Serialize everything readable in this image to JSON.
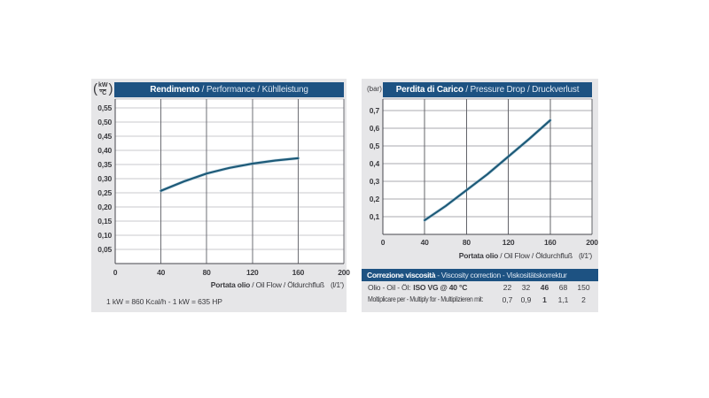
{
  "colors": {
    "page_bg": "#ffffff",
    "panel_bg": "#e6e6e8",
    "header_bg": "#1d5282",
    "header_text": "#ffffff",
    "header_text_secondary": "#dce6f1",
    "text": "#3a3a3e",
    "plot_bg": "#ffffff",
    "axis": "#45464c",
    "curve": "#1d5a78",
    "curve_halo": "#9cc2d4"
  },
  "left_panel": {
    "y_unit": {
      "open": "(",
      "numerator": "kW",
      "denominator": "°C",
      "close": ")"
    },
    "header": {
      "primary": "Rendimento",
      "secondary": " / Performance / Kühlleistung"
    },
    "xlabel": {
      "bold": "Portata olio",
      "rest": " / Oil Flow / Öldurchfluß",
      "unit": "(l/1')"
    },
    "footnote": "1 kW = 860 Kcal/h - 1 kW = 635 HP"
  },
  "right_panel": {
    "y_unit": "(bar)",
    "header": {
      "primary": "Perdita di Carico",
      "secondary": " / Pressure Drop / Druckverlust"
    },
    "xlabel": {
      "bold": "Portata olio",
      "rest": " / Oil Flow / Öldurchfluß",
      "unit": "(l/1')"
    },
    "viscosity": {
      "header": {
        "primary": "Correzione viscosità",
        "secondary": " - Viscosity correction - Viskositätskorrektur"
      },
      "row1": {
        "label": "Olio - Oil - Öl:",
        "label_bold": "ISO VG @ 40 °C",
        "values": [
          "22",
          "32",
          "46",
          "68",
          "150"
        ],
        "bold_index": 2
      },
      "row2": {
        "label": "Moltiplicare per - Multiply for - Multiplizieren mit:",
        "values": [
          "0,7",
          "0,9",
          "1",
          "1,1",
          "2"
        ],
        "bold_index": 2
      }
    }
  },
  "chart_data": [
    {
      "id": "performance",
      "type": "line",
      "title": "Rendimento / Performance / Kühlleistung",
      "xlabel": "Portata olio / Oil Flow / Öldurchfluß (l/1')",
      "ylabel": "kW/°C",
      "x": [
        40,
        60,
        80,
        100,
        120,
        140,
        160
      ],
      "y": [
        0.257,
        0.29,
        0.318,
        0.338,
        0.353,
        0.364,
        0.372
      ],
      "xlim": [
        0,
        200
      ],
      "ylim": [
        0,
        0.581
      ],
      "x_ticks": [
        {
          "v": 0,
          "label": "0"
        },
        {
          "v": 40,
          "label": "40"
        },
        {
          "v": 80,
          "label": "80"
        },
        {
          "v": 120,
          "label": "120"
        },
        {
          "v": 160,
          "label": "160"
        },
        {
          "v": 200,
          "label": "200"
        }
      ],
      "y_ticks": [
        {
          "v": 0.05,
          "label": "0,05"
        },
        {
          "v": 0.1,
          "label": "0,10"
        },
        {
          "v": 0.15,
          "label": "0,15"
        },
        {
          "v": 0.2,
          "label": "0,20"
        },
        {
          "v": 0.25,
          "label": "0,25"
        },
        {
          "v": 0.3,
          "label": "0,30"
        },
        {
          "v": 0.35,
          "label": "0,35"
        },
        {
          "v": 0.4,
          "label": "0,40"
        },
        {
          "v": 0.45,
          "label": "0,45"
        },
        {
          "v": 0.5,
          "label": "0,50"
        },
        {
          "v": 0.55,
          "label": "0,55"
        }
      ],
      "y_grid_step": 0.05,
      "grid": true,
      "legend": false,
      "grid_color_h": "#c8c8cd",
      "grid_color_v": "#6e6f75"
    },
    {
      "id": "pressure_drop",
      "type": "line",
      "title": "Perdita di Carico / Pressure Drop / Druckverlust",
      "xlabel": "Portata olio / Oil Flow / Öldurchfluß (l/1')",
      "ylabel": "bar",
      "x": [
        40,
        60,
        80,
        100,
        120,
        140,
        160
      ],
      "y": [
        0.08,
        0.16,
        0.25,
        0.34,
        0.44,
        0.54,
        0.645
      ],
      "xlim": [
        0,
        200
      ],
      "ylim": [
        0,
        0.765
      ],
      "x_ticks": [
        {
          "v": 0,
          "label": "0"
        },
        {
          "v": 40,
          "label": "40"
        },
        {
          "v": 80,
          "label": "80"
        },
        {
          "v": 120,
          "label": "120"
        },
        {
          "v": 160,
          "label": "160"
        },
        {
          "v": 200,
          "label": "200"
        }
      ],
      "y_ticks": [
        {
          "v": 0.1,
          "label": "0,1"
        },
        {
          "v": 0.2,
          "label": "0,2"
        },
        {
          "v": 0.3,
          "label": "0,3"
        },
        {
          "v": 0.4,
          "label": "0,4"
        },
        {
          "v": 0.5,
          "label": "0,5"
        },
        {
          "v": 0.6,
          "label": "0,6"
        },
        {
          "v": 0.7,
          "label": "0,7"
        }
      ],
      "y_grid_step": 0.1,
      "grid": true,
      "legend": false,
      "grid_color_h": "#a9a9af",
      "grid_color_v": "#63646a"
    }
  ]
}
